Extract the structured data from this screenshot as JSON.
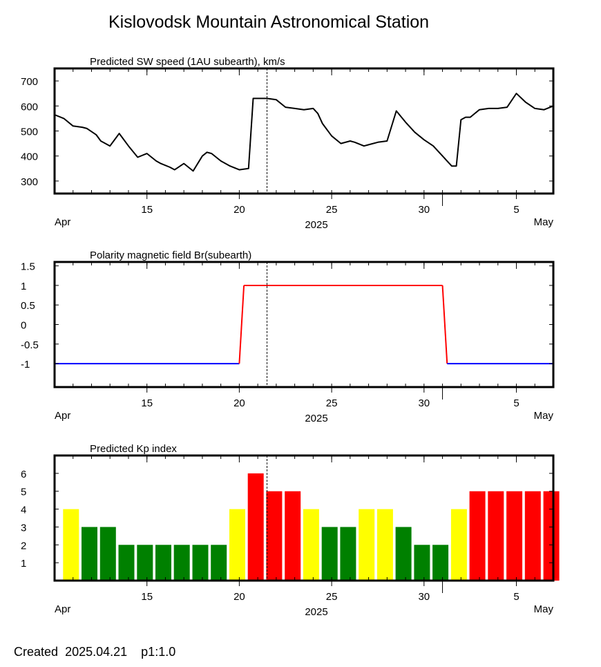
{
  "title": "Kislovodsk Mountain Astronomical Station",
  "footer": {
    "created_label": "Created",
    "created_date": "2025.04.21",
    "page": "p1:1.0"
  },
  "x_axis": {
    "start": "2025-04-10",
    "end": "2025-05-07",
    "major_ticks": [
      {
        "date": "2025-04-15",
        "label": "15"
      },
      {
        "date": "2025-04-20",
        "label": "20"
      },
      {
        "date": "2025-04-25",
        "label": "25"
      },
      {
        "date": "2025-04-30",
        "label": "30"
      },
      {
        "date": "2025-05-05",
        "label": "5"
      }
    ],
    "month_start_label": "Apr",
    "month_end_label": "May",
    "year_label": "2025",
    "current_time_marker": "2025-04-21T12:00"
  },
  "chart_data": [
    {
      "type": "line",
      "title": "Predicted SW speed (1AU subearth), km/s",
      "ylim": [
        250,
        750
      ],
      "yticks": [
        "300",
        "400",
        "500",
        "600",
        "700"
      ],
      "color": "#000000",
      "x": [
        "2025-04-10",
        "2025-04-10T12:00",
        "2025-04-11",
        "2025-04-11T12:00",
        "2025-04-11T18:00",
        "2025-04-12T06:00",
        "2025-04-12T12:00",
        "2025-04-13",
        "2025-04-13T12:00",
        "2025-04-14",
        "2025-04-14T12:00",
        "2025-04-15",
        "2025-04-15T12:00",
        "2025-04-15T18:00",
        "2025-04-16T06:00",
        "2025-04-16T12:00",
        "2025-04-17",
        "2025-04-17T12:00",
        "2025-04-18",
        "2025-04-18T06:00",
        "2025-04-18T12:00",
        "2025-04-18T18:00",
        "2025-04-19",
        "2025-04-19T12:00",
        "2025-04-20",
        "2025-04-20T12:00",
        "2025-04-20T18:00",
        "2025-04-21",
        "2025-04-21T12:00",
        "2025-04-22",
        "2025-04-22T12:00",
        "2025-04-23",
        "2025-04-23T12:00",
        "2025-04-24",
        "2025-04-24T06:00",
        "2025-04-24T12:00",
        "2025-04-25",
        "2025-04-25T12:00",
        "2025-04-26",
        "2025-04-26T06:00",
        "2025-04-26T18:00",
        "2025-04-27",
        "2025-04-27T12:00",
        "2025-04-28",
        "2025-04-28T12:00",
        "2025-04-29",
        "2025-04-29T12:00",
        "2025-04-30",
        "2025-04-30T12:00",
        "2025-05-01",
        "2025-05-01T06:00",
        "2025-05-01T12:00",
        "2025-05-01T18:00",
        "2025-05-02",
        "2025-05-02T06:00",
        "2025-05-02T12:00",
        "2025-05-03",
        "2025-05-03T12:00",
        "2025-05-04",
        "2025-05-04T12:00",
        "2025-05-05",
        "2025-05-05T12:00",
        "2025-05-06",
        "2025-05-06T12:00",
        "2025-05-07"
      ],
      "y": [
        565,
        550,
        520,
        515,
        510,
        485,
        460,
        440,
        490,
        440,
        395,
        410,
        380,
        370,
        355,
        345,
        370,
        340,
        400,
        415,
        410,
        395,
        380,
        360,
        345,
        350,
        630,
        630,
        630,
        625,
        595,
        590,
        585,
        590,
        570,
        530,
        480,
        450,
        460,
        455,
        440,
        445,
        455,
        460,
        580,
        535,
        495,
        465,
        440,
        400,
        380,
        360,
        360,
        545,
        555,
        555,
        585,
        590,
        590,
        595,
        650,
        615,
        590,
        585,
        600
      ]
    },
    {
      "type": "line",
      "title": "Polarity magnetic field  Br(subearth)",
      "ylim": [
        -1.6,
        1.6
      ],
      "yticks": [
        "-1",
        "-0.5",
        "0",
        "0.5",
        "1",
        "1.5"
      ],
      "legend": {
        "positive_color": "#ff0000",
        "negative_color": "#0000ff"
      },
      "x": [
        "2025-04-10",
        "2025-04-20",
        "2025-04-20T06:00",
        "2025-05-01",
        "2025-05-01T06:00",
        "2025-05-07"
      ],
      "y": [
        -1,
        -1,
        1,
        1,
        -1,
        -1
      ]
    },
    {
      "type": "bar",
      "title": "Predicted Kp index",
      "ylim": [
        0,
        7
      ],
      "yticks": [
        "1",
        "2",
        "3",
        "4",
        "5",
        "6"
      ],
      "colors": {
        "quiet": "#008000",
        "unsettled": "#ffff00",
        "storm": "#ff0000"
      },
      "x": [
        "2025-04-10",
        "2025-04-11",
        "2025-04-12",
        "2025-04-13",
        "2025-04-14",
        "2025-04-15",
        "2025-04-16",
        "2025-04-17",
        "2025-04-18",
        "2025-04-19",
        "2025-04-20",
        "2025-04-21",
        "2025-04-22",
        "2025-04-23",
        "2025-04-24",
        "2025-04-25",
        "2025-04-26",
        "2025-04-27",
        "2025-04-28",
        "2025-04-29",
        "2025-04-30",
        "2025-05-01",
        "2025-05-02",
        "2025-05-03",
        "2025-05-04",
        "2025-05-05",
        "2025-05-06"
      ],
      "values": [
        4,
        3,
        3,
        2,
        2,
        2,
        2,
        2,
        2,
        4,
        6,
        5,
        5,
        4,
        3,
        3,
        4,
        4,
        3,
        2,
        2,
        4,
        5,
        5,
        5,
        5,
        5
      ]
    }
  ]
}
